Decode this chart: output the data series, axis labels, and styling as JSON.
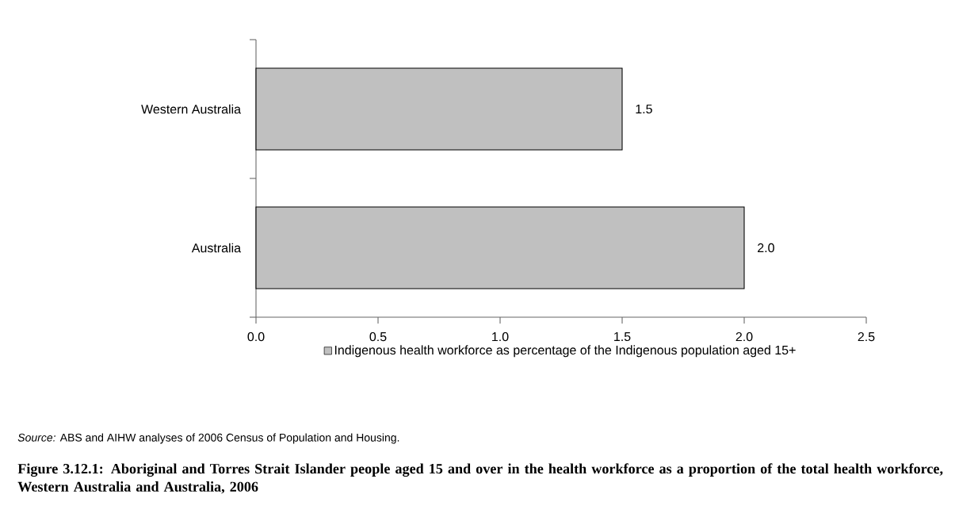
{
  "chart_data": {
    "type": "bar",
    "orientation": "horizontal",
    "title": "Figure 3.12.1: Aboriginal and Torres Strait Islander people aged 15 and over in the health workforce as a proportion of the total health workforce, Western Australia and Australia, 2006",
    "categories": [
      "Western Australia",
      "Australia"
    ],
    "series": [
      {
        "name": "Indigenous health workforce as percentage of the Indigenous population aged 15+",
        "color": "#c0c0c0",
        "values": [
          1.5,
          2.0
        ],
        "value_labels": [
          "1.5",
          "2.0"
        ]
      }
    ],
    "xlim": [
      0,
      2.5
    ],
    "xticks": [
      {
        "value": 0,
        "label": "0.0"
      },
      0.5,
      {
        "value": 1,
        "label": "1.0"
      },
      1.5,
      {
        "value": 2,
        "label": "2.0"
      },
      2.5
    ],
    "legend": "bottom",
    "annotations": [
      "*Source:* ABS and AIHW analyses of 2006 Census of Population and Housing."
    ]
  }
}
